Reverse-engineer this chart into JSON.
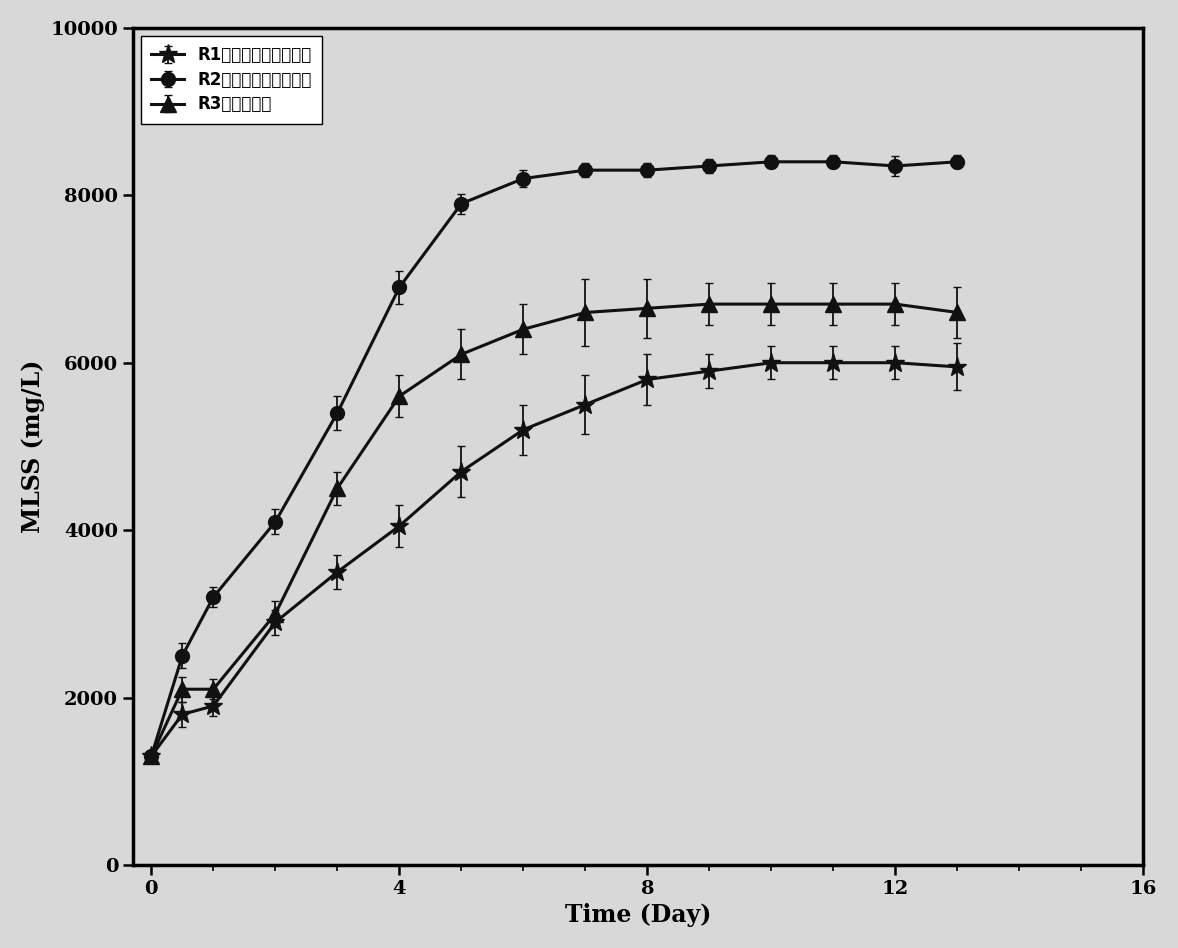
{
  "title": "",
  "xlabel": "Time (Day)",
  "ylabel": "MLSS (mg/L)",
  "xlim": [
    -0.3,
    16
  ],
  "ylim": [
    0,
    10000
  ],
  "xticks": [
    0,
    4,
    8,
    12,
    16
  ],
  "yticks": [
    0,
    2000,
    4000,
    6000,
    8000,
    10000
  ],
  "R1": {
    "label_prefix": "R1",
    "label_suffix": "（低负荷－青霉素）",
    "x": [
      0,
      0.5,
      1,
      2,
      3,
      4,
      5,
      6,
      7,
      8,
      9,
      10,
      11,
      12,
      13
    ],
    "y": [
      1300,
      1800,
      1900,
      2900,
      3500,
      4050,
      4700,
      5200,
      5500,
      5800,
      5900,
      6000,
      6000,
      6000,
      5950
    ],
    "yerr": [
      50,
      150,
      120,
      150,
      200,
      250,
      300,
      300,
      350,
      300,
      200,
      200,
      200,
      200,
      280
    ],
    "color": "#111111",
    "marker": "*",
    "markersize": 14
  },
  "R2": {
    "label_prefix": "R2",
    "label_suffix": "（高负荷－青霉素）",
    "x": [
      0,
      0.5,
      1,
      2,
      3,
      4,
      5,
      6,
      7,
      8,
      9,
      10,
      11,
      12,
      13
    ],
    "y": [
      1300,
      2500,
      3200,
      4100,
      5400,
      6900,
      7900,
      8200,
      8300,
      8300,
      8350,
      8400,
      8400,
      8350,
      8400
    ],
    "yerr": [
      50,
      150,
      120,
      150,
      200,
      200,
      120,
      100,
      80,
      80,
      80,
      80,
      80,
      120,
      80
    ],
    "color": "#111111",
    "marker": "o",
    "markersize": 10
  },
  "R3": {
    "label_prefix": "R3",
    "label_suffix": "（青霉素）",
    "x": [
      0,
      0.5,
      1,
      2,
      3,
      4,
      5,
      6,
      7,
      8,
      9,
      10,
      11,
      12,
      13
    ],
    "y": [
      1300,
      2100,
      2100,
      3000,
      4500,
      5600,
      6100,
      6400,
      6600,
      6650,
      6700,
      6700,
      6700,
      6700,
      6600
    ],
    "yerr": [
      50,
      150,
      120,
      150,
      200,
      250,
      300,
      300,
      400,
      350,
      250,
      250,
      250,
      250,
      300
    ],
    "color": "#111111",
    "marker": "^",
    "markersize": 11
  },
  "linewidth": 2.2,
  "background_color": "#d8d8d8",
  "legend_fontsize": 12,
  "axis_label_fontsize": 17,
  "tick_fontsize": 14
}
